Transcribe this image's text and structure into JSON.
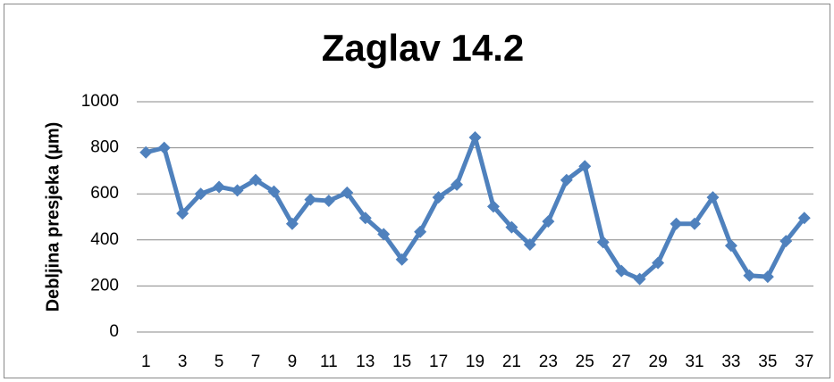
{
  "chart_data": {
    "type": "line",
    "title": "Zaglav 14.2",
    "y_label": "Debljina presjeka (µm)",
    "categories": [
      1,
      null,
      3,
      null,
      5,
      null,
      7,
      null,
      9,
      null,
      11,
      null,
      13,
      null,
      15,
      null,
      17,
      null,
      19,
      null,
      21,
      null,
      23,
      null,
      25,
      null,
      27,
      null,
      29,
      null,
      31,
      null,
      33,
      null,
      35,
      null,
      37
    ],
    "series": [
      {
        "name": "Zaglav 14.2",
        "color": "#4f81bd",
        "values": [
          780,
          800,
          515,
          600,
          630,
          615,
          660,
          610,
          470,
          575,
          570,
          605,
          495,
          425,
          315,
          435,
          585,
          640,
          845,
          545,
          455,
          380,
          480,
          660,
          720,
          390,
          265,
          230,
          300,
          470,
          470,
          585,
          375,
          245,
          240,
          395,
          495
        ]
      }
    ],
    "ylim": [
      0,
      1000
    ],
    "yticks": [
      0,
      200,
      400,
      600,
      800,
      1000
    ],
    "grid": true
  }
}
